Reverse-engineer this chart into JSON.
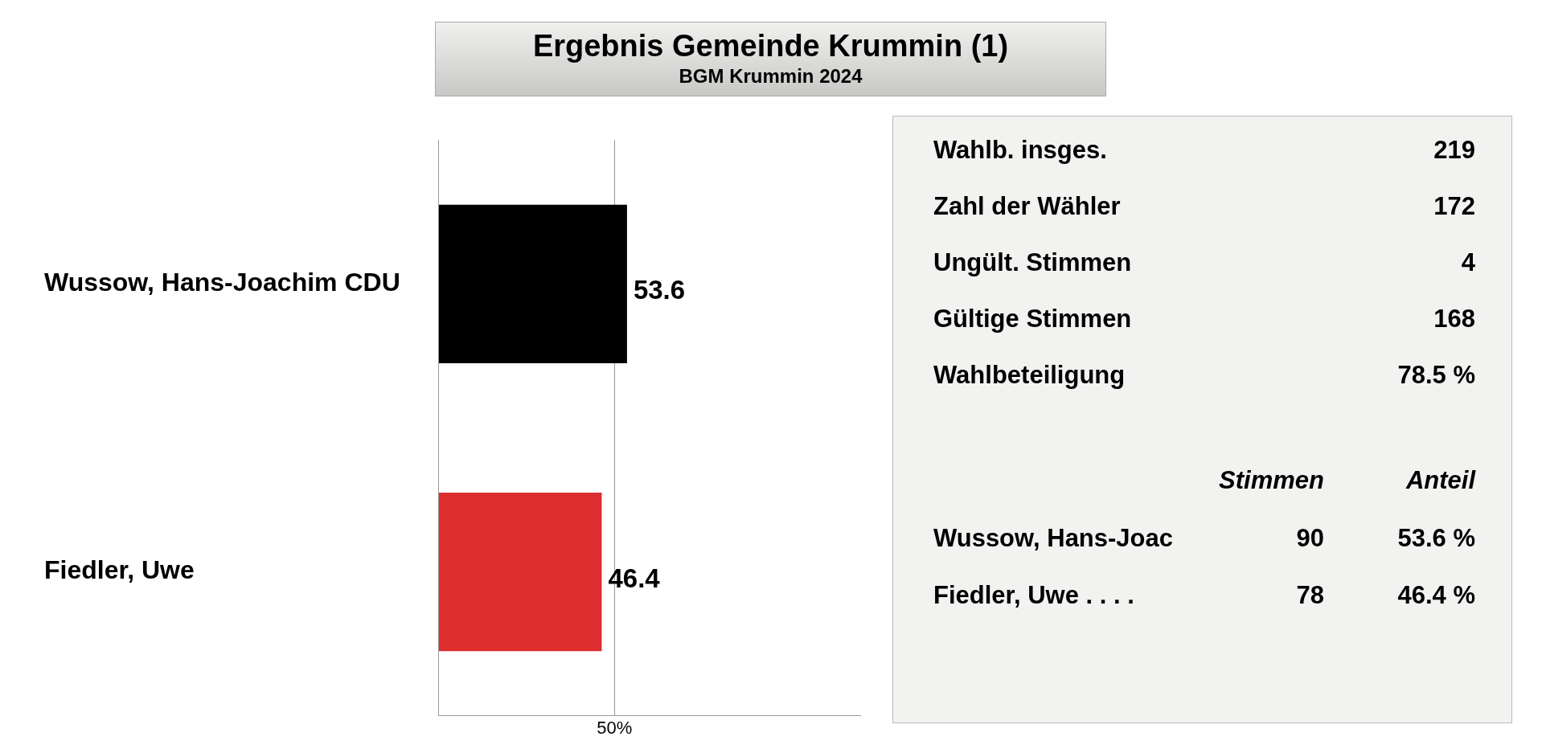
{
  "chart_data": [
    {
      "type": "bar",
      "orientation": "horizontal",
      "title": "Ergebnis Gemeinde Krummin (1)",
      "subtitle": "BGM Krummin 2024",
      "categories": [
        "Wussow, Hans-Joachim CDU",
        "Fiedler, Uwe"
      ],
      "values": [
        53.6,
        46.4
      ],
      "colors": [
        "#000000",
        "#dd2e30"
      ],
      "xlim": [
        0,
        120
      ],
      "xticks": [
        {
          "value": 50,
          "label": "50%"
        }
      ],
      "grid": "x",
      "data_labels": true
    },
    {
      "type": "other",
      "categories": [
        "Wahlb. insges.",
        "Zahl der Wähler",
        "Ungült. Stimmen",
        "Gültige Stimmen",
        "Wahlbeteiligung"
      ],
      "values": [
        219,
        172,
        4,
        168,
        78.5
      ],
      "value_labels": [
        "219",
        "172",
        "4",
        "168",
        "78.5 %"
      ]
    },
    {
      "type": "other",
      "data_labels": true,
      "categories": [
        "Wussow, Hans-Joac",
        "Fiedler, Uwe . . . ."
      ],
      "series": [
        {
          "name": "Stimmen",
          "values": [
            90,
            78
          ]
        },
        {
          "name": "Anteil",
          "values": [
            53.6,
            46.4
          ],
          "value_labels": [
            "53.6 %",
            "46.4 %"
          ]
        }
      ]
    }
  ]
}
